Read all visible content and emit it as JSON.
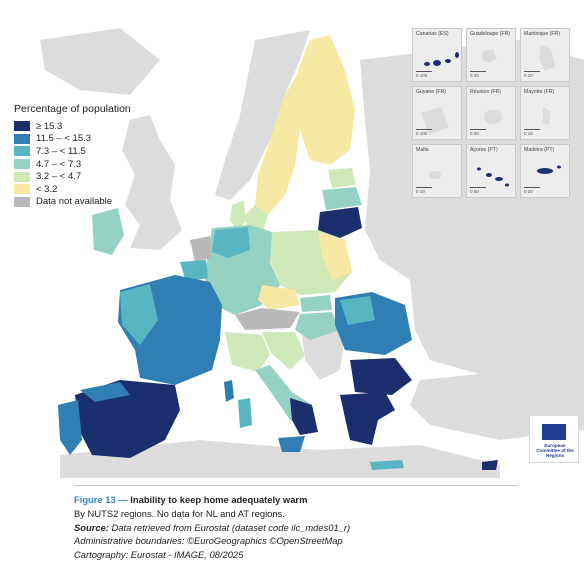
{
  "map": {
    "legend": {
      "title": "Percentage of population",
      "items": [
        {
          "label": "≥ 15.3",
          "color": "#1b2f6e"
        },
        {
          "label": "11.5 – < 15.3",
          "color": "#2f7fb5"
        },
        {
          "label": "7.3 – < 11.5",
          "color": "#58b6c2"
        },
        {
          "label": "4.7 – < 7.3",
          "color": "#95d2c3"
        },
        {
          "label": "3.2 – < 4.7",
          "color": "#cfe8b8"
        },
        {
          "label": "< 3.2",
          "color": "#f7e8a4"
        },
        {
          "label": "Data not available",
          "color": "#b9b9b9"
        }
      ]
    },
    "insets": [
      {
        "name": "Canarias (ES)",
        "scale": "0   100"
      },
      {
        "name": "Guadeloupe (FR)",
        "scale": "0   25"
      },
      {
        "name": "Martinique (FR)",
        "scale": "0   20"
      },
      {
        "name": "Guyane (FR)",
        "scale": "0   100"
      },
      {
        "name": "Réunion (FR)",
        "scale": "0   20"
      },
      {
        "name": "Mayotte (FR)",
        "scale": "0   15"
      },
      {
        "name": "Malta",
        "scale": "0   10"
      },
      {
        "name": "Açores (PT)",
        "scale": "0   50"
      },
      {
        "name": "Madeira (PT)",
        "scale": "0   20"
      }
    ],
    "logo_text": "European Committee of the Regions",
    "colors": {
      "sea": "#ffffff",
      "non_eu_land": "#dcdcdc",
      "no_data": "#b9b9b9"
    }
  },
  "caption": {
    "figure_number": "Figure 13 —",
    "title": "Inability to keep home adequately warm",
    "subtitle": "By NUTS2 regions. No data for NL and AT regions.",
    "source_label": "Source:",
    "source_text": " Data retrieved from Eurostat (dataset code ilc_mdes01_r)",
    "boundaries": "Administrative boundaries: ©EuroGeographics ©OpenStreetMap",
    "cartography": "Cartography: Eurostat - IMAGE, 08/2025"
  }
}
